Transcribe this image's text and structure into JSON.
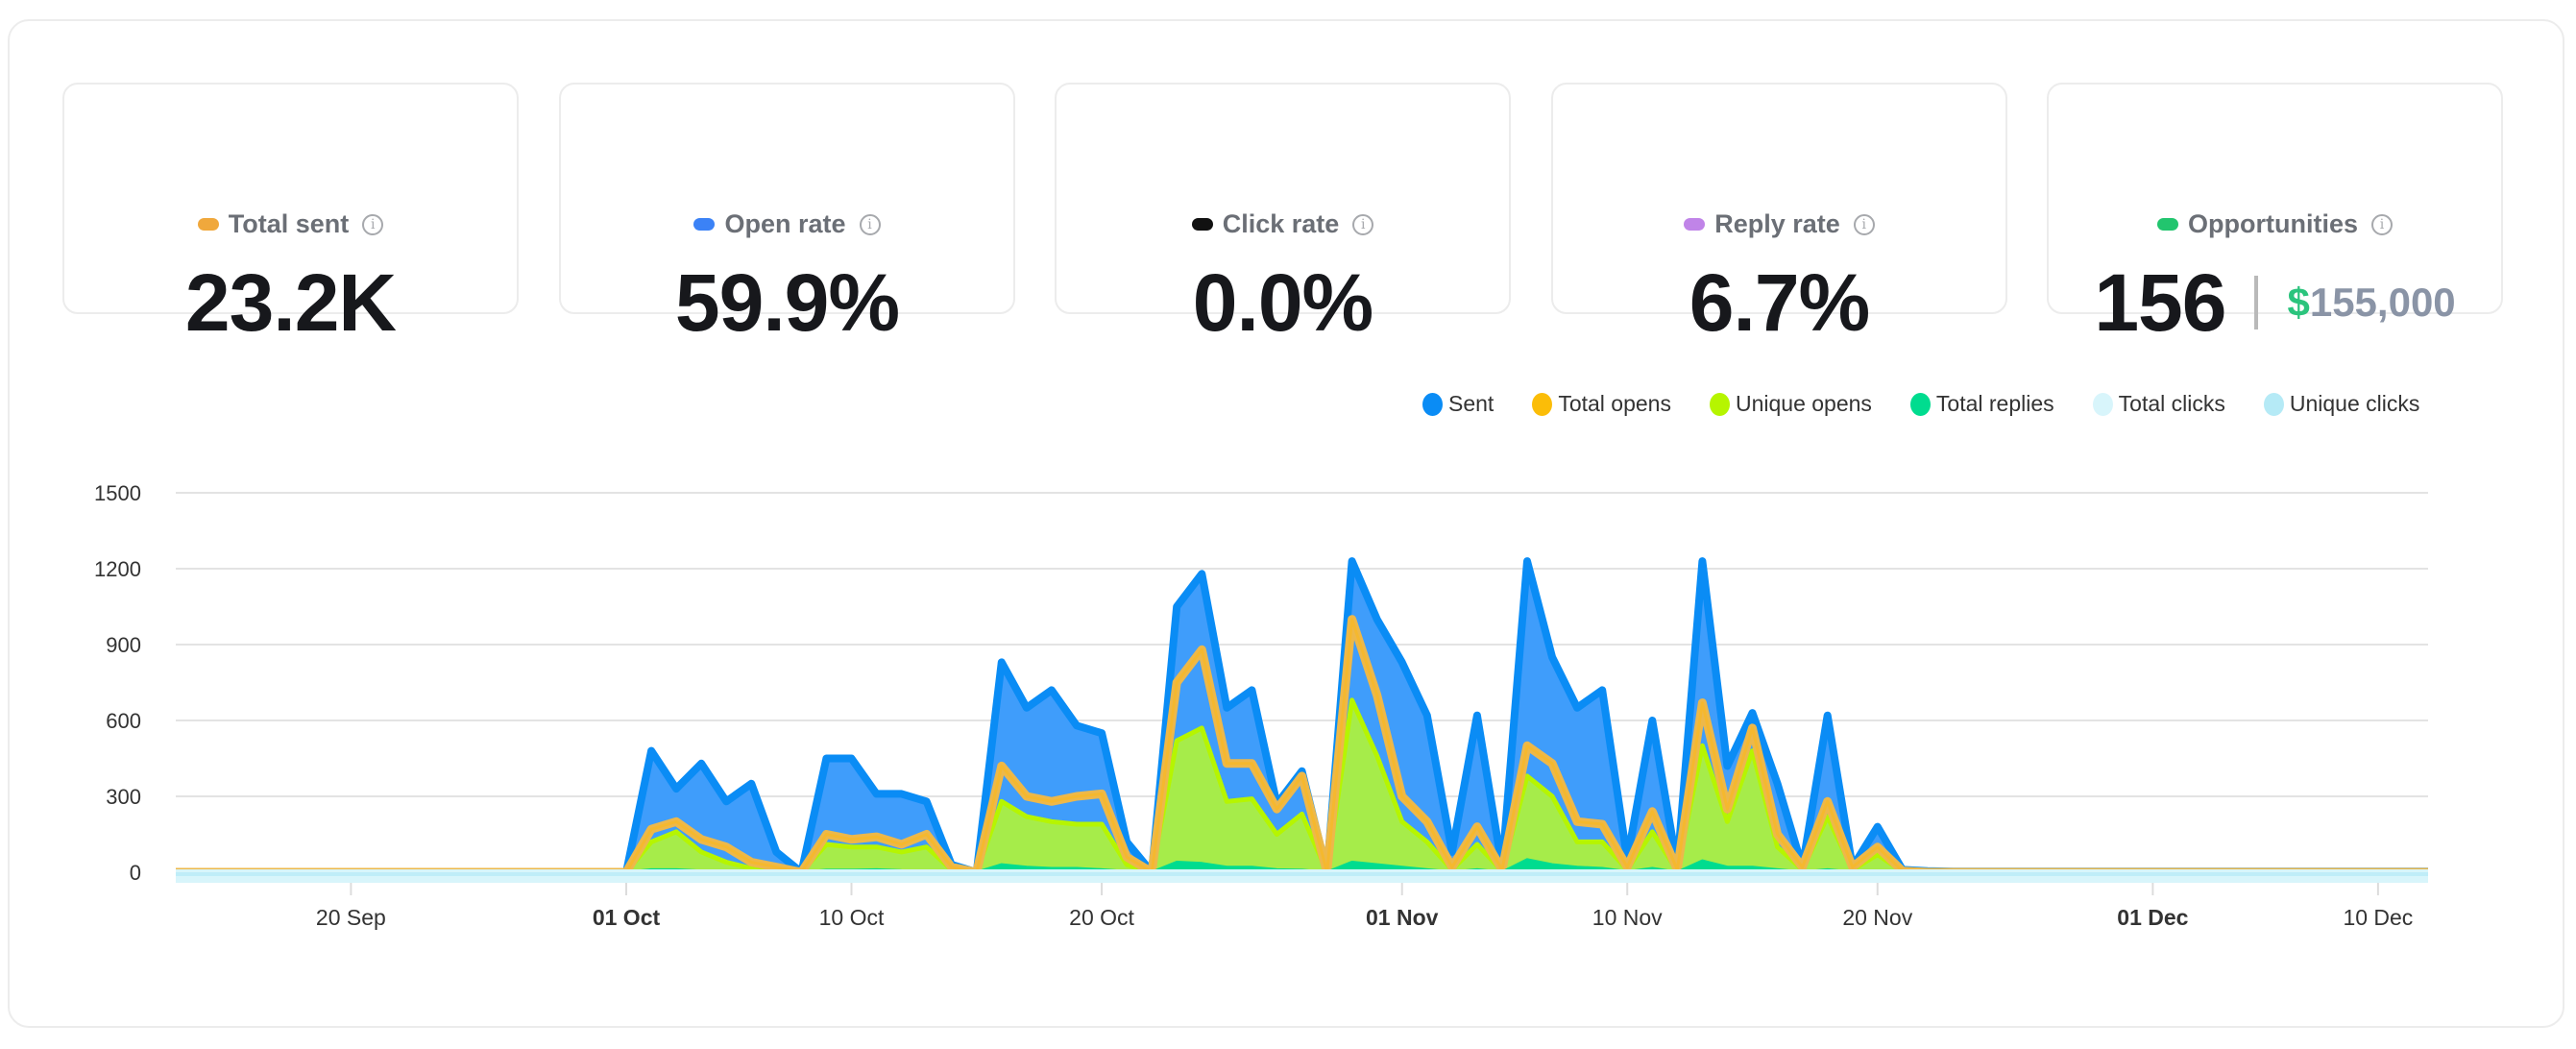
{
  "cards": [
    {
      "label": "Total sent",
      "value": "23.2K",
      "color": "#f0a83c",
      "icon": "info-icon"
    },
    {
      "label": "Open rate",
      "value": "59.9%",
      "color": "#3b82f6",
      "icon": "info-icon"
    },
    {
      "label": "Click rate",
      "value": "0.0%",
      "color": "#111111",
      "icon": "info-icon"
    },
    {
      "label": "Reply rate",
      "value": "6.7%",
      "color": "#c084e8",
      "icon": "info-icon"
    },
    {
      "label": "Opportunities",
      "value": "156",
      "amount_symbol": "$",
      "amount": "155,000",
      "color": "#22c56e",
      "amount_color": "#2bc47d",
      "icon": "info-icon"
    }
  ],
  "chart_data": {
    "type": "area",
    "ylim": [
      0,
      1500
    ],
    "yticks": [
      "0",
      "300",
      "600",
      "900",
      "1200",
      "1500"
    ],
    "xticks": [
      {
        "label": "20 Sep",
        "date": "20 Sep",
        "bold": false
      },
      {
        "label": "01 Oct",
        "date": "1 Oct",
        "bold": true
      },
      {
        "label": "10 Oct",
        "date": "10 Oct",
        "bold": false
      },
      {
        "label": "20 Oct",
        "date": "20 Oct",
        "bold": false
      },
      {
        "label": "01 Nov",
        "date": "1 Nov",
        "bold": true
      },
      {
        "label": "10 Nov",
        "date": "10 Nov",
        "bold": false
      },
      {
        "label": "20 Nov",
        "date": "20 Nov",
        "bold": false
      },
      {
        "label": "01 Dec",
        "date": "1 Dec",
        "bold": true
      },
      {
        "label": "10 Dec",
        "date": "10 Dec",
        "bold": false
      }
    ],
    "grid": true,
    "legend_position": "top-right",
    "x": [
      "13 Sep",
      "14 Sep",
      "15 Sep",
      "16 Sep",
      "17 Sep",
      "18 Sep",
      "19 Sep",
      "20 Sep",
      "21 Sep",
      "22 Sep",
      "23 Sep",
      "24 Sep",
      "25 Sep",
      "26 Sep",
      "27 Sep",
      "28 Sep",
      "29 Sep",
      "30 Sep",
      "1 Oct",
      "2 Oct",
      "3 Oct",
      "4 Oct",
      "5 Oct",
      "6 Oct",
      "7 Oct",
      "8 Oct",
      "9 Oct",
      "10 Oct",
      "11 Oct",
      "12 Oct",
      "13 Oct",
      "14 Oct",
      "15 Oct",
      "16 Oct",
      "17 Oct",
      "18 Oct",
      "19 Oct",
      "20 Oct",
      "21 Oct",
      "22 Oct",
      "23 Oct",
      "24 Oct",
      "25 Oct",
      "26 Oct",
      "27 Oct",
      "28 Oct",
      "29 Oct",
      "30 Oct",
      "31 Oct",
      "1 Nov",
      "2 Nov",
      "3 Nov",
      "4 Nov",
      "5 Nov",
      "6 Nov",
      "7 Nov",
      "8 Nov",
      "9 Nov",
      "10 Nov",
      "11 Nov",
      "12 Nov",
      "13 Nov",
      "14 Nov",
      "15 Nov",
      "16 Nov",
      "17 Nov",
      "18 Nov",
      "19 Nov",
      "20 Nov",
      "21 Nov",
      "22 Nov",
      "23 Nov",
      "24 Nov",
      "25 Nov",
      "26 Nov",
      "27 Nov",
      "28 Nov",
      "29 Nov",
      "30 Nov",
      "1 Dec",
      "2 Dec",
      "3 Dec",
      "4 Dec",
      "5 Dec",
      "6 Dec",
      "7 Dec",
      "8 Dec",
      "9 Dec",
      "10 Dec",
      "11 Dec",
      "12 Dec"
    ],
    "series": [
      {
        "name": "Sent",
        "color": "#0a8cf5",
        "fill": "#3f9dfb",
        "values": [
          0,
          0,
          0,
          0,
          0,
          0,
          0,
          0,
          0,
          0,
          0,
          0,
          0,
          0,
          0,
          0,
          0,
          0,
          0,
          480,
          330,
          430,
          280,
          350,
          80,
          0,
          450,
          450,
          310,
          310,
          280,
          30,
          0,
          830,
          650,
          720,
          580,
          550,
          120,
          0,
          1050,
          1180,
          650,
          720,
          270,
          400,
          0,
          1230,
          1000,
          830,
          620,
          80,
          620,
          20,
          1230,
          850,
          650,
          720,
          50,
          600,
          20,
          1230,
          420,
          630,
          350,
          20,
          620,
          20,
          180,
          10,
          5,
          3,
          3,
          3,
          3,
          3,
          3,
          3,
          3,
          3,
          3,
          3,
          3,
          3,
          3,
          3,
          3,
          3,
          3,
          3,
          3
        ]
      },
      {
        "name": "Total opens",
        "color": "#f5b82e",
        "values": [
          0,
          0,
          0,
          0,
          0,
          0,
          0,
          0,
          0,
          0,
          0,
          0,
          0,
          0,
          0,
          0,
          0,
          0,
          0,
          170,
          200,
          130,
          100,
          40,
          20,
          0,
          150,
          130,
          140,
          110,
          150,
          20,
          0,
          420,
          300,
          280,
          300,
          310,
          60,
          0,
          750,
          880,
          430,
          430,
          250,
          380,
          0,
          1000,
          700,
          300,
          200,
          20,
          180,
          10,
          500,
          430,
          200,
          190,
          20,
          240,
          10,
          670,
          250,
          570,
          150,
          20,
          280,
          20,
          100,
          5,
          0,
          0,
          0,
          0,
          0,
          0,
          0,
          0,
          0,
          0,
          0,
          0,
          0,
          0,
          0,
          0,
          0,
          0,
          0,
          0,
          0
        ]
      },
      {
        "name": "Unique opens",
        "color": "#b6f500",
        "fill": "#a6ec4a",
        "values": [
          0,
          0,
          0,
          0,
          0,
          0,
          0,
          0,
          0,
          0,
          0,
          0,
          0,
          0,
          0,
          0,
          0,
          0,
          0,
          120,
          160,
          80,
          40,
          15,
          5,
          0,
          110,
          100,
          100,
          80,
          100,
          10,
          0,
          280,
          220,
          200,
          190,
          190,
          30,
          0,
          520,
          570,
          280,
          290,
          150,
          230,
          0,
          680,
          460,
          200,
          120,
          10,
          110,
          5,
          380,
          300,
          120,
          120,
          10,
          160,
          5,
          500,
          200,
          480,
          100,
          10,
          220,
          10,
          70,
          2,
          0,
          0,
          0,
          0,
          0,
          0,
          0,
          0,
          0,
          0,
          0,
          0,
          0,
          0,
          0,
          0,
          0,
          0,
          0,
          0,
          0
        ]
      },
      {
        "name": "Total replies",
        "color": "#00dc8f",
        "values": [
          0,
          0,
          0,
          0,
          0,
          0,
          0,
          0,
          0,
          0,
          0,
          0,
          0,
          0,
          0,
          0,
          0,
          0,
          0,
          10,
          10,
          5,
          3,
          2,
          1,
          0,
          8,
          8,
          10,
          6,
          5,
          1,
          0,
          30,
          20,
          15,
          15,
          10,
          3,
          0,
          40,
          35,
          20,
          20,
          10,
          8,
          0,
          40,
          30,
          20,
          10,
          1,
          10,
          0,
          50,
          30,
          20,
          15,
          2,
          15,
          0,
          45,
          20,
          20,
          10,
          1,
          10,
          1,
          5,
          0,
          0,
          0,
          0,
          0,
          0,
          0,
          0,
          0,
          0,
          0,
          0,
          0,
          0,
          0,
          0,
          0,
          0,
          0,
          0,
          0,
          0
        ]
      },
      {
        "name": "Total clicks",
        "color": "#d8f5fb",
        "values": [
          0,
          0,
          0,
          0,
          0,
          0,
          0,
          0,
          0,
          0,
          0,
          0,
          0,
          0,
          0,
          0,
          0,
          0,
          0,
          0,
          0,
          0,
          0,
          0,
          0,
          0,
          0,
          0,
          0,
          0,
          0,
          0,
          0,
          0,
          0,
          0,
          0,
          0,
          0,
          0,
          0,
          0,
          0,
          0,
          0,
          0,
          0,
          0,
          0,
          0,
          0,
          0,
          0,
          0,
          0,
          0,
          0,
          0,
          0,
          0,
          0,
          0,
          0,
          0,
          0,
          0,
          0,
          0,
          0,
          0,
          0,
          0,
          0,
          0,
          0,
          0,
          0,
          0,
          0,
          0,
          0,
          0,
          0,
          0,
          0,
          0,
          0,
          0,
          0,
          0,
          0
        ]
      },
      {
        "name": "Unique clicks",
        "color": "#b5eaf6",
        "values": [
          0,
          0,
          0,
          0,
          0,
          0,
          0,
          0,
          0,
          0,
          0,
          0,
          0,
          0,
          0,
          0,
          0,
          0,
          0,
          0,
          0,
          0,
          0,
          0,
          0,
          0,
          0,
          0,
          0,
          0,
          0,
          0,
          0,
          0,
          0,
          0,
          0,
          0,
          0,
          0,
          0,
          0,
          0,
          0,
          0,
          0,
          0,
          0,
          0,
          0,
          0,
          0,
          0,
          0,
          0,
          0,
          0,
          0,
          0,
          0,
          0,
          0,
          0,
          0,
          0,
          0,
          0,
          0,
          0,
          0,
          0,
          0,
          0,
          0,
          0,
          0,
          0,
          0,
          0,
          0,
          0,
          0,
          0,
          0,
          0,
          0,
          0,
          0,
          0,
          0,
          0
        ]
      }
    ]
  }
}
